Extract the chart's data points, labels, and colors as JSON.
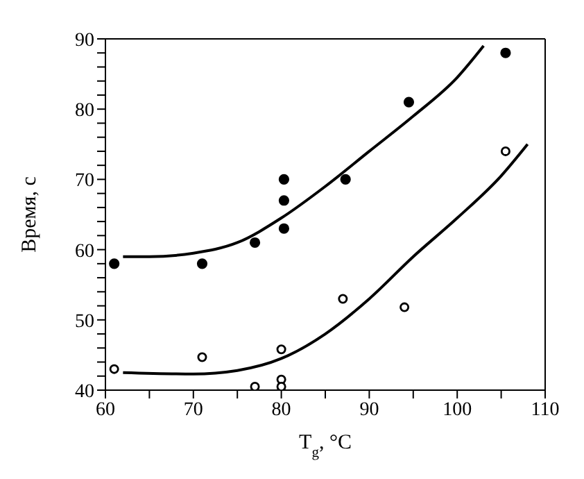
{
  "chart_data": {
    "type": "scatter",
    "xlabel": "T$_{g}$, °C",
    "ylabel": "Время, с",
    "xlim": [
      60,
      110
    ],
    "ylim": [
      40,
      90
    ],
    "xticks": [
      60,
      {
        "value": 65,
        "label": null
      },
      70,
      {
        "value": 75,
        "label": null
      },
      80,
      {
        "value": 85,
        "label": null
      },
      90,
      {
        "value": 95,
        "label": null
      },
      100,
      {
        "value": 105,
        "label": null
      },
      110
    ],
    "yticks": [
      40,
      {
        "value": 42,
        "label": null
      },
      {
        "value": 44,
        "label": null
      },
      {
        "value": 46,
        "label": null
      },
      {
        "value": 48,
        "label": null
      },
      50,
      {
        "value": 52,
        "label": null
      },
      {
        "value": 54,
        "label": null
      },
      {
        "value": 56,
        "label": null
      },
      {
        "value": 58,
        "label": null
      },
      60,
      {
        "value": 62,
        "label": null
      },
      {
        "value": 64,
        "label": null
      },
      {
        "value": 66,
        "label": null
      },
      {
        "value": 68,
        "label": null
      },
      70,
      {
        "value": 72,
        "label": null
      },
      {
        "value": 74,
        "label": null
      },
      {
        "value": 76,
        "label": null
      },
      {
        "value": 78,
        "label": null
      },
      80,
      {
        "value": 82,
        "label": null
      },
      {
        "value": 84,
        "label": null
      },
      {
        "value": 86,
        "label": null
      },
      {
        "value": 88,
        "label": null
      },
      90
    ],
    "grid": false,
    "legend": false,
    "series": [
      {
        "type": "scatter",
        "marker": "circle",
        "color": "#000000",
        "x": [
          61,
          71,
          77,
          80.3,
          80.3,
          80.3,
          87.3,
          94.5,
          105.5
        ],
        "values": [
          58,
          58,
          61,
          63,
          67,
          70,
          70,
          81,
          88
        ]
      },
      {
        "type": "scatter",
        "marker": "open_circle",
        "color": "#000000",
        "x": [
          61,
          71,
          77,
          80,
          80,
          80,
          87,
          94,
          105.5
        ],
        "values": [
          43,
          44.7,
          40.5,
          41.5,
          40.5,
          45.8,
          53,
          51.8,
          74
        ]
      },
      {
        "type": "line",
        "marker": "none",
        "color": "#000000",
        "x": [
          62,
          65,
          70,
          75,
          80,
          85,
          90,
          95,
          100,
          103
        ],
        "values": [
          59,
          59,
          59.5,
          61,
          64.5,
          69,
          74,
          79,
          84.5,
          89
        ]
      },
      {
        "type": "line",
        "marker": "none",
        "color": "#000000",
        "x": [
          62,
          70,
          75,
          80,
          85,
          90,
          95,
          100,
          105,
          108
        ],
        "values": [
          42.5,
          42.3,
          42.8,
          44.5,
          48,
          53,
          59,
          64.5,
          70.5,
          75
        ]
      }
    ]
  }
}
